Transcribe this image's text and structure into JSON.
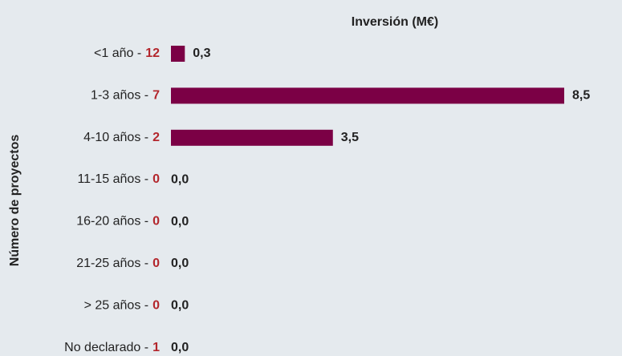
{
  "chart_data": {
    "type": "bar",
    "orientation": "horizontal",
    "title": "Inversión (M€)",
    "y_axis_label": "Número de proyectos",
    "categories": [
      "<1 año -",
      "1-3 años -",
      "4-10 años -",
      "11-15 años -",
      "16-20 años -",
      "21-25 años -",
      "> 25 años -",
      "No declarado -"
    ],
    "project_counts": [
      12,
      7,
      2,
      0,
      0,
      0,
      0,
      1
    ],
    "values": [
      0.3,
      8.5,
      3.5,
      0,
      0,
      0,
      0,
      0
    ],
    "value_labels": [
      "0,3",
      "8,5",
      "3,5",
      "0,0",
      "0,0",
      "0,0",
      "0,0",
      "0,0"
    ],
    "color": "#7b0045",
    "count_color": "#b3262c",
    "xlim": [
      0,
      8.5
    ]
  }
}
